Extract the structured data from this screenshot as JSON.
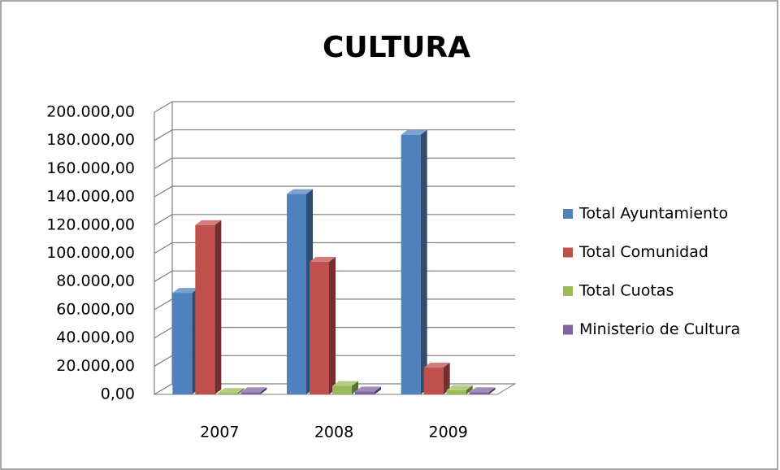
{
  "chart_data": {
    "type": "bar3d",
    "title": "CULTURA",
    "categories": [
      "2007",
      "2008",
      "2009"
    ],
    "series": [
      {
        "name": "Total Ayuntamiento",
        "color": "#4f81bd",
        "values": [
          72000,
          142000,
          184000
        ]
      },
      {
        "name": "Total Comunidad",
        "color": "#c0504d",
        "values": [
          120000,
          94000,
          19000
        ]
      },
      {
        "name": "Total Cuotas",
        "color": "#9bbb59",
        "values": [
          1000,
          6000,
          3000
        ]
      },
      {
        "name": "Ministerio de Cultura",
        "color": "#8064a2",
        "values": [
          1500,
          2000,
          1500
        ]
      }
    ],
    "ylim": [
      0,
      200000
    ],
    "yticks": [
      {
        "value": 0,
        "label": "0,00"
      },
      {
        "value": 20000,
        "label": "20.000,00"
      },
      {
        "value": 40000,
        "label": "40.000,00"
      },
      {
        "value": 60000,
        "label": "60.000,00"
      },
      {
        "value": 80000,
        "label": "80.000,00"
      },
      {
        "value": 100000,
        "label": "100.000,00"
      },
      {
        "value": 120000,
        "label": "120.000,00"
      },
      {
        "value": 140000,
        "label": "140.000,00"
      },
      {
        "value": 160000,
        "label": "160.000,00"
      },
      {
        "value": 180000,
        "label": "180.000,00"
      },
      {
        "value": 200000,
        "label": "200.000,00"
      }
    ],
    "grid": true,
    "legend": "right"
  }
}
